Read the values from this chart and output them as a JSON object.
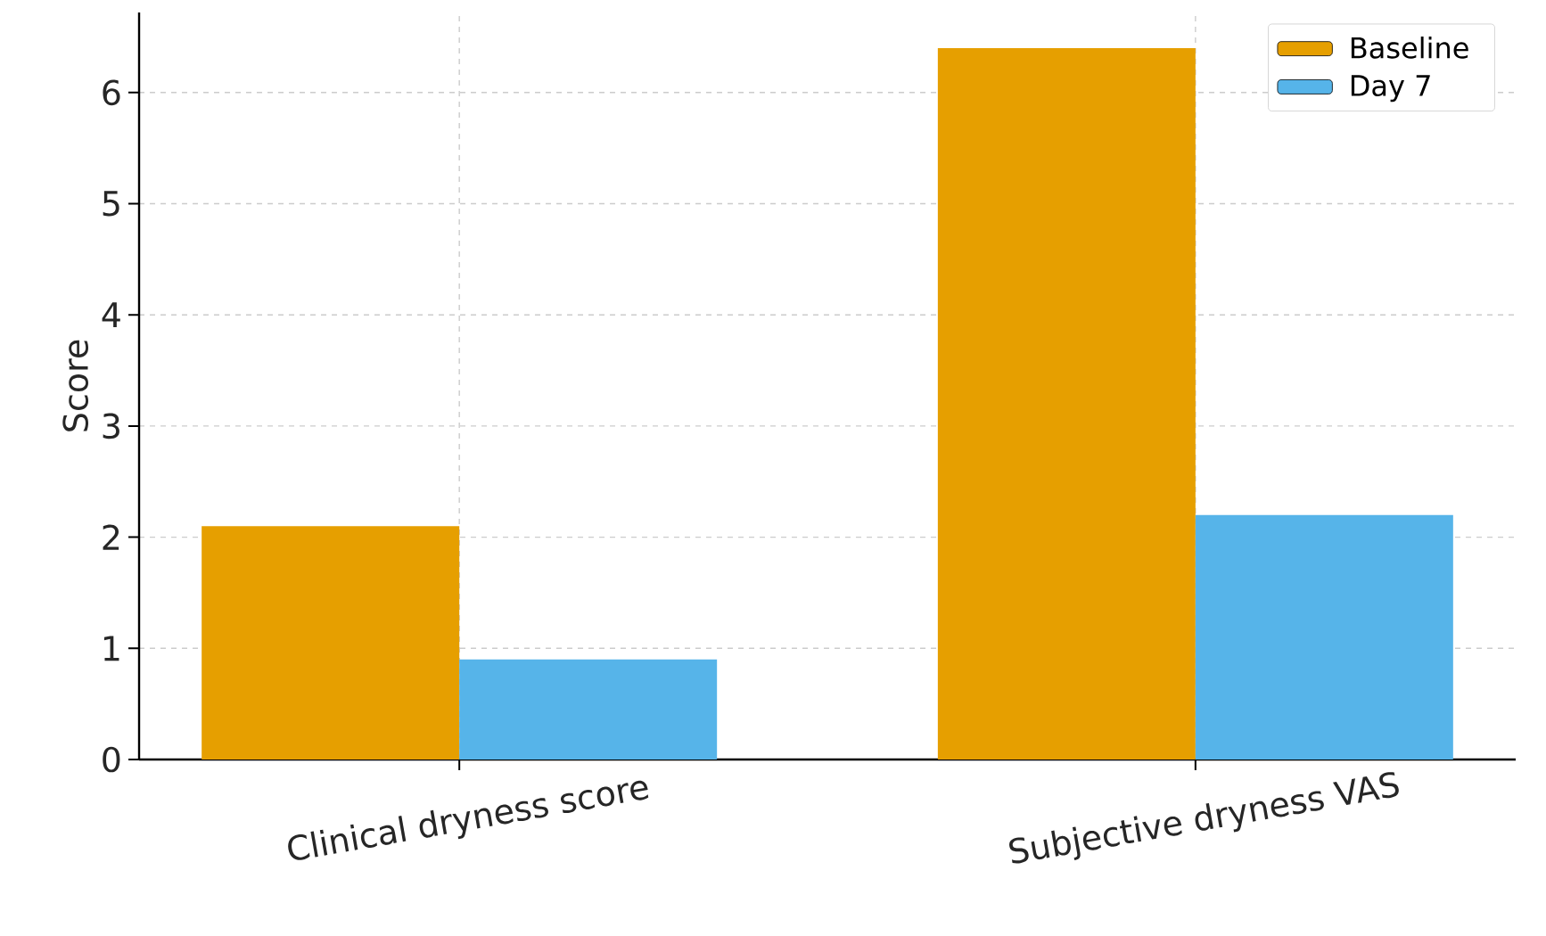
{
  "chart_data": {
    "type": "bar",
    "ylabel": "Score",
    "categories": [
      "Clinical dryness score",
      "Subjective dryness VAS"
    ],
    "series": [
      {
        "name": "Baseline",
        "color": "#e69f00",
        "values": [
          2.1,
          6.4
        ]
      },
      {
        "name": "Day 7",
        "color": "#56b4e9",
        "values": [
          0.9,
          2.2
        ]
      }
    ],
    "ylim": [
      0,
      6.72
    ],
    "yticks": [
      0,
      1,
      2,
      3,
      4,
      5,
      6
    ],
    "grid": true,
    "legend": "top right"
  }
}
